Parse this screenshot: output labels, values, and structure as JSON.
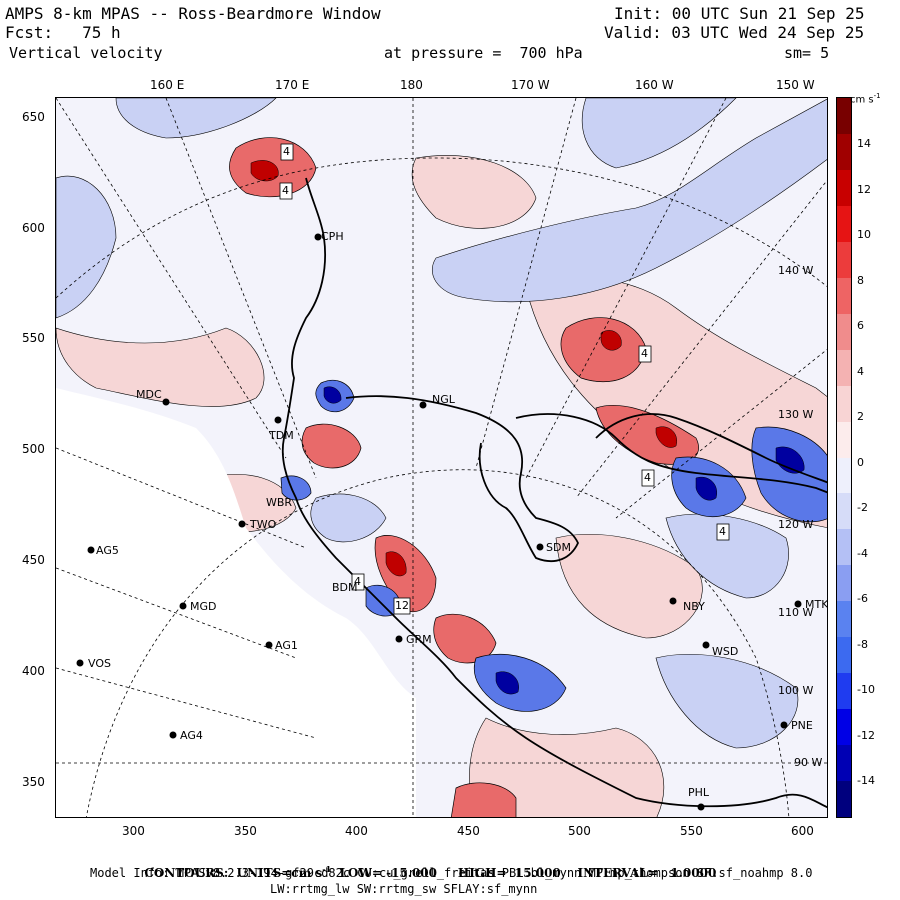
{
  "header": {
    "left_line1": "AMPS 8-km MPAS -- Ross-Beardmore Window",
    "left_line2": "Fcst:   75 h",
    "left_line3": "Vertical velocity",
    "right_line1": "Init: 00 UTC Sun 21 Sep 25",
    "right_line2": "Valid: 03 UTC Wed 24 Sep 25",
    "pressure_label": "at pressure =  700 hPa",
    "sm_label": "sm= 5"
  },
  "top_axis": [
    "160 E",
    "170 E",
    "180",
    "170 W",
    "160 W",
    "150 W"
  ],
  "left_axis": [
    "650",
    "600",
    "550",
    "500",
    "450",
    "400",
    "350"
  ],
  "bottom_axis": [
    "300",
    "350",
    "400",
    "450",
    "500",
    "550",
    "600"
  ],
  "inner_lon_labels": [
    "140 W",
    "130 W",
    "120 W",
    "110 W",
    "100 W",
    "90 W"
  ],
  "stations": [
    {
      "name": "CPH"
    },
    {
      "name": "MDC"
    },
    {
      "name": "NGL"
    },
    {
      "name": "TDM"
    },
    {
      "name": "WBR"
    },
    {
      "name": "TWO"
    },
    {
      "name": "AG5"
    },
    {
      "name": "SDM"
    },
    {
      "name": "BDM"
    },
    {
      "name": "MGD"
    },
    {
      "name": "NBY"
    },
    {
      "name": "MTK"
    },
    {
      "name": "AG1"
    },
    {
      "name": "GRM"
    },
    {
      "name": "WSD"
    },
    {
      "name": "VOS"
    },
    {
      "name": "PNE"
    },
    {
      "name": "AG4"
    },
    {
      "name": "PHL"
    }
  ],
  "contour_labels": [
    "4",
    "4",
    "4",
    "4",
    "4",
    "4",
    "12"
  ],
  "colorbar": {
    "units": "cm s",
    "units_exp": "-1",
    "labels": [
      "14",
      "12",
      "10",
      "8",
      "6",
      "4",
      "2",
      "0",
      "-2",
      "-4",
      "-6",
      "-8",
      "-10",
      "-12",
      "-14"
    ],
    "colors": [
      "#00007e",
      "#0000b4",
      "#0000e6",
      "#1f3cf0",
      "#3c6af0",
      "#5a82f0",
      "#8a9ef2",
      "#b4c0f5",
      "#d6dcf8",
      "#eef0fc",
      "#fcecec",
      "#f8d4d4",
      "#f4b2b2",
      "#f08c8c",
      "#ee6464",
      "#ec3c3c",
      "#e61414",
      "#c80000",
      "#a00000",
      "#780000"
    ]
  },
  "footer": {
    "contours_line": "CONTOURS:  UNITS=cm s",
    "contours_exp": "-1",
    "contours_rest": "  LOW= -15.000     HIGH=  15.000    INTERVAL=   1.0000",
    "model_info": "Model Info: MPASv8.2.3-194-gf29cd82c CU:cu_grell_freitas PBL:bl_mynn MP:mp_thompson SF:sf_noahmp 8.0",
    "model_info2": "LW:rrtmg_lw SW:rrtmg_sw SFLAY:sf_mynn"
  },
  "colors": {
    "up_strong": "#b40000",
    "up_weak": "#f7c8c8",
    "down_strong": "#0000a0",
    "down_weak": "#c8d0f4",
    "ice_shelf": "#ffffff",
    "background": "#f3f3fb"
  }
}
